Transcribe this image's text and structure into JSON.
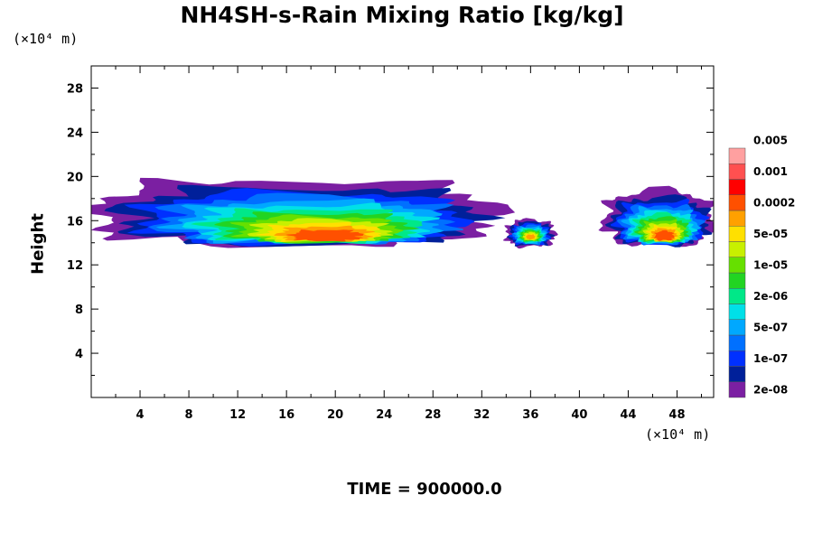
{
  "chart_data": {
    "type": "heatmap",
    "title": "NH4SH-s-Rain Mixing Ratio [kg/kg]",
    "ylabel": "Height",
    "x_unit_label": "(×10⁴ m)",
    "y_unit_label": "(×10⁴ m)",
    "xlim": [
      0,
      51
    ],
    "ylim": [
      0,
      30
    ],
    "x_ticks": [
      "4",
      "8",
      "12",
      "16",
      "20",
      "24",
      "28",
      "32",
      "36",
      "40",
      "44",
      "48"
    ],
    "y_ticks": [
      "4",
      "8",
      "12",
      "16",
      "20",
      "24",
      "28"
    ],
    "time_label": "TIME = 900000.0",
    "colorbar": {
      "colors": [
        "#7b1fa2",
        "#00209a",
        "#0030ff",
        "#0070ff",
        "#00a8ff",
        "#00e0e8",
        "#00e888",
        "#22d422",
        "#66e000",
        "#c8f000",
        "#ffe000",
        "#ffa000",
        "#ff5000",
        "#ff0000",
        "#ff5050",
        "#ffa0a0"
      ],
      "labels": [
        "2e-08",
        "1e-07",
        "5e-07",
        "2e-06",
        "1e-05",
        "5e-05",
        "0.0002",
        "0.001",
        "0.005"
      ]
    },
    "features": [
      {
        "x_range": [
          0,
          33
        ],
        "y_range": [
          13.5,
          19.5
        ],
        "peak": "6e-04",
        "peak_x": 19.5,
        "peak_y": 14.5
      },
      {
        "x_range": [
          34,
          38
        ],
        "y_range": [
          13.5,
          16
        ],
        "peak": "2e-04",
        "peak_x": 36,
        "peak_y": 14.5
      },
      {
        "x_range": [
          42,
          51
        ],
        "y_range": [
          13.5,
          18.5
        ],
        "peak": "6e-04",
        "peak_x": 47,
        "peak_y": 14.5
      }
    ]
  }
}
